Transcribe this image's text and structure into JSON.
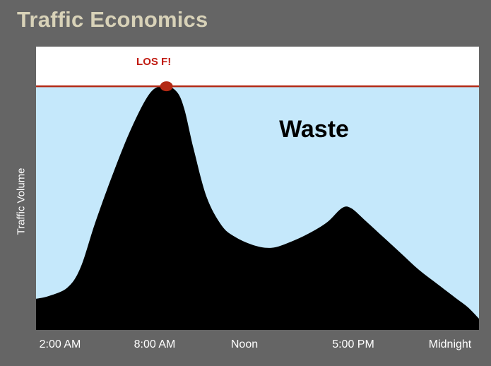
{
  "slide": {
    "title": "Traffic Economics"
  },
  "chart_data": {
    "type": "area",
    "title": "",
    "xlabel": "",
    "ylabel": "Traffic Volume",
    "x_ticks": [
      "2:00  AM",
      "8:00 AM",
      "Noon",
      "5:00 PM",
      "Midnight"
    ],
    "x_tick_hours": [
      2,
      8,
      12,
      17,
      24
    ],
    "xlim": [
      0.3,
      24.2
    ],
    "ylim": [
      0,
      100
    ],
    "capacity_level": 86,
    "annotations": {
      "capacity_label": "LOS F!",
      "waste_label": "Waste"
    },
    "series": [
      {
        "x": [
          0.3,
          1.0,
          2.0,
          2.7,
          3.5,
          4.5,
          5.5,
          6.5,
          7.3,
          7.9,
          8.3,
          8.8,
          9.5,
          10.3,
          11.0,
          12.0,
          13.0,
          14.0,
          15.0,
          16.0,
          16.8,
          17.3,
          18.0,
          19.0,
          20.0,
          21.0,
          22.0,
          23.0,
          23.6,
          24.2
        ],
        "y": [
          11,
          12,
          15,
          22,
          38,
          56,
          72,
          84,
          86,
          84,
          78,
          64,
          47,
          37,
          33,
          30,
          29,
          31,
          34,
          38,
          43,
          43,
          39,
          33,
          27,
          21,
          16,
          11,
          8,
          4
        ]
      }
    ],
    "colors": {
      "fill": "#000000",
      "waste_region": "#c5e8fb",
      "capacity_line": "#b32a15",
      "capacity_label": "#c01a10",
      "plot_border": "#ffffff"
    },
    "grid": false,
    "legend": "none"
  }
}
